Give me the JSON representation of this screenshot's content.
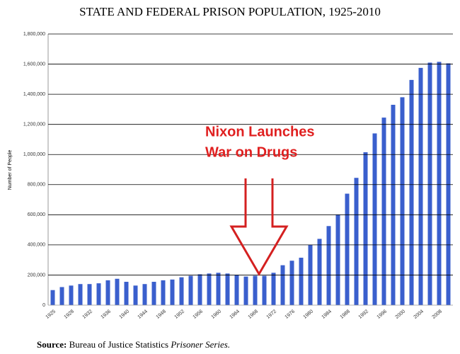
{
  "chart_data": {
    "type": "bar",
    "title": "STATE AND FEDERAL PRISON POPULATION, 1925-2010",
    "y_label": "Number of People",
    "annotation": [
      "Nixon Launches",
      "War on Drugs"
    ],
    "source_label": "Source:",
    "source": "Bureau of Justice Statistics",
    "source_series": "Prisoner Series.",
    "categories": [
      "1925",
      null,
      "1928",
      null,
      "1932",
      null,
      "1936",
      null,
      "1940",
      null,
      "1944",
      null,
      "1948",
      null,
      "1952",
      null,
      "1956",
      null,
      "1960",
      null,
      "1964",
      null,
      "1968",
      null,
      "1972",
      null,
      "1976",
      null,
      "1980",
      null,
      "1984",
      null,
      "1988",
      null,
      "1992",
      null,
      "1996",
      null,
      "2000",
      null,
      "2004",
      null,
      "2008",
      null
    ],
    "values": [
      100000,
      120000,
      130000,
      140000,
      140000,
      145000,
      165000,
      175000,
      155000,
      130000,
      140000,
      155000,
      165000,
      170000,
      185000,
      195000,
      205000,
      210000,
      215000,
      210000,
      200000,
      190000,
      195000,
      195000,
      215000,
      265000,
      295000,
      315000,
      400000,
      440000,
      525000,
      600000,
      740000,
      845000,
      1015000,
      1140000,
      1245000,
      1330000,
      1380000,
      1495000,
      1575000,
      1610000,
      1615000,
      1605000
    ],
    "color": "#3a5fcd",
    "ylim": [
      0,
      1800000
    ],
    "yticks": [
      0,
      {
        "value": 200000,
        "label": "200,000"
      },
      {
        "value": 400000,
        "label": "400,000"
      },
      {
        "value": 600000,
        "label": "600,000"
      },
      {
        "value": 800000,
        "label": "800,000"
      },
      {
        "value": 1000000,
        "label": "1,000,000"
      },
      {
        "value": 1200000,
        "label": "1,200,000"
      },
      {
        "value": 1400000,
        "label": "1,400,000"
      },
      {
        "value": 1600000,
        "label": "1,600,000"
      },
      {
        "value": 1800000,
        "label": "1,800,000"
      }
    ],
    "grid": true
  }
}
